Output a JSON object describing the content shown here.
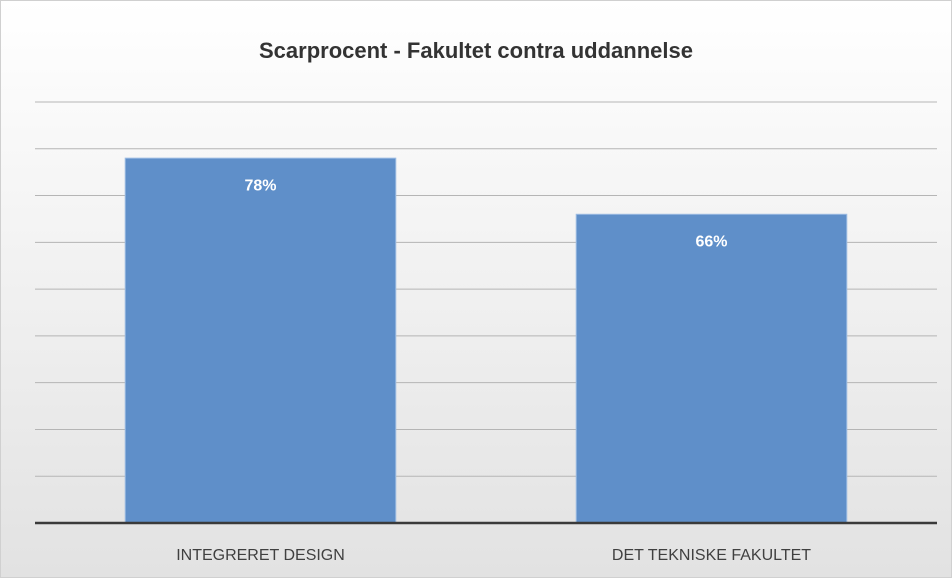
{
  "chart_data": {
    "type": "bar",
    "title": "Scarprocent - Fakultet contra uddannelse",
    "categories": [
      "INTEGRERET DESIGN",
      "DET TEKNISKE FAKULTET"
    ],
    "values": [
      78,
      66
    ],
    "value_labels": [
      "78%",
      "66%"
    ],
    "color": "#5f8fc9",
    "ylim": [
      0,
      90
    ],
    "yticks": [
      0,
      10,
      20,
      30,
      40,
      50,
      60,
      70,
      80,
      90
    ],
    "grid": true
  }
}
